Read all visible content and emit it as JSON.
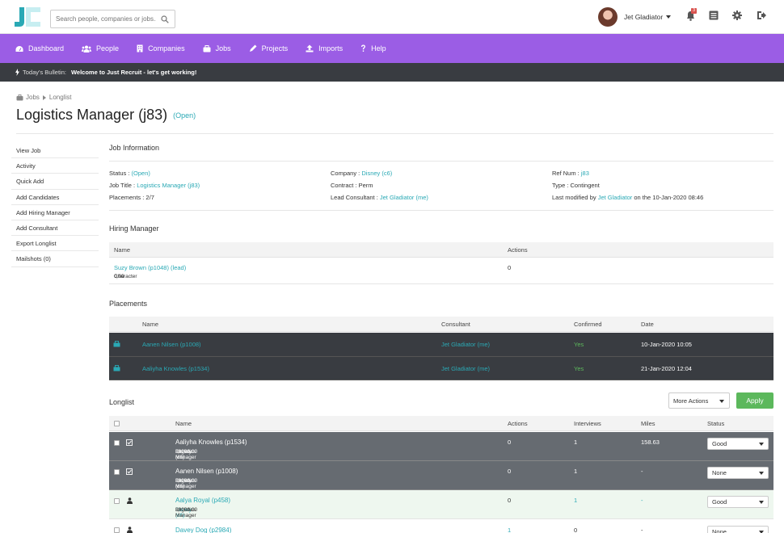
{
  "header": {
    "search_placeholder": "Search people, companies or jobs...",
    "user_name": "Jet Gladiator",
    "notification_count": "3"
  },
  "nav": [
    {
      "label": "Dashboard",
      "icon": "dashboard-icon"
    },
    {
      "label": "People",
      "icon": "people-icon"
    },
    {
      "label": "Companies",
      "icon": "companies-icon"
    },
    {
      "label": "Jobs",
      "icon": "jobs-icon"
    },
    {
      "label": "Projects",
      "icon": "projects-icon"
    },
    {
      "label": "Imports",
      "icon": "imports-icon"
    },
    {
      "label": "Help",
      "icon": "help-icon"
    }
  ],
  "bulletin": {
    "label": "Today's Bulletin:",
    "message": "Welcome to Just Recruit - let's get working!"
  },
  "breadcrumb": {
    "jobs": "Jobs",
    "current": "Longlist"
  },
  "page": {
    "title": "Logistics Manager (j83)",
    "status": "(Open)"
  },
  "sidebar": [
    "View Job",
    "Activity",
    "Quick Add",
    "Add Candidates",
    "Add Hiring Manager",
    "Add Consultant",
    "Export Longlist",
    "Mailshots (0)"
  ],
  "job_info": {
    "heading": "Job Information",
    "status_label": "Status :",
    "status_value": "(Open)",
    "job_title_label": "Job Title :",
    "job_title_value": "Logistics Manager (j83)",
    "placements_label": "Placements : 2/7",
    "company_label": "Company :",
    "company_value": "Disney (c6)",
    "contract_label": "Contract : Perm",
    "lead_label": "Lead Consultant :",
    "lead_value": "Jet Gladiator (me)",
    "ref_label": "Ref Num :",
    "ref_value": "j83",
    "type_label": "Type : Contingent",
    "modified_label": "Last modified by",
    "modified_user": "Jet Gladiator",
    "modified_date": "on the 10-Jan-2020 08:46"
  },
  "hiring_manager": {
    "heading": "Hiring Manager",
    "col_name": "Name",
    "col_actions": "Actions",
    "name": "Suzy Brown (p1048) (lead)",
    "character_label": "Character",
    "character_value": "0.00",
    "actions": "0"
  },
  "placements": {
    "heading": "Placements",
    "col_name": "Name",
    "col_consultant": "Consultant",
    "col_confirmed": "Confirmed",
    "col_date": "Date",
    "rows": [
      {
        "name": "Aanen Nilsen (p1008)",
        "consultant": "Jet Gladiator (me)",
        "confirmed": "Yes",
        "date": "10-Jan-2020 10:05"
      },
      {
        "name": "Aaliyha Knowles (p1534)",
        "consultant": "Jet Gladiator (me)",
        "confirmed": "Yes",
        "date": "21-Jan-2020 12:04"
      }
    ]
  },
  "longlist": {
    "heading": "Longlist",
    "more_actions": "More Actions",
    "apply": "Apply",
    "col_name": "Name",
    "col_actions": "Actions",
    "col_interviews": "Interviews",
    "col_miles": "Miles",
    "col_status": "Status",
    "rows": [
      {
        "name": "Aaliyha Knowles (p1534)",
        "company": "Disney (c6)",
        "role": "Logistics Manager",
        "salary": "38000.00",
        "actions": "0",
        "interviews": "1",
        "miles": "158.63",
        "status": "Good"
      },
      {
        "name": "Aanen Nilsen (p1008)",
        "company": "Disney (c6)",
        "role": "Logistics Manager",
        "salary": "38000.00",
        "actions": "0",
        "interviews": "1",
        "miles": "-",
        "status": "None"
      },
      {
        "name": "Aalya Royal (p458)",
        "company": "Disney (c6)",
        "role": "Logistics Manager",
        "salary": "38000.00",
        "actions": "0",
        "interviews": "1",
        "miles": "-",
        "status": "Good"
      },
      {
        "name": "Davey Dog (p2984)",
        "company": "",
        "role": "",
        "salary": "",
        "actions": "1",
        "interviews": "0",
        "miles": "-",
        "status": "None"
      }
    ]
  }
}
